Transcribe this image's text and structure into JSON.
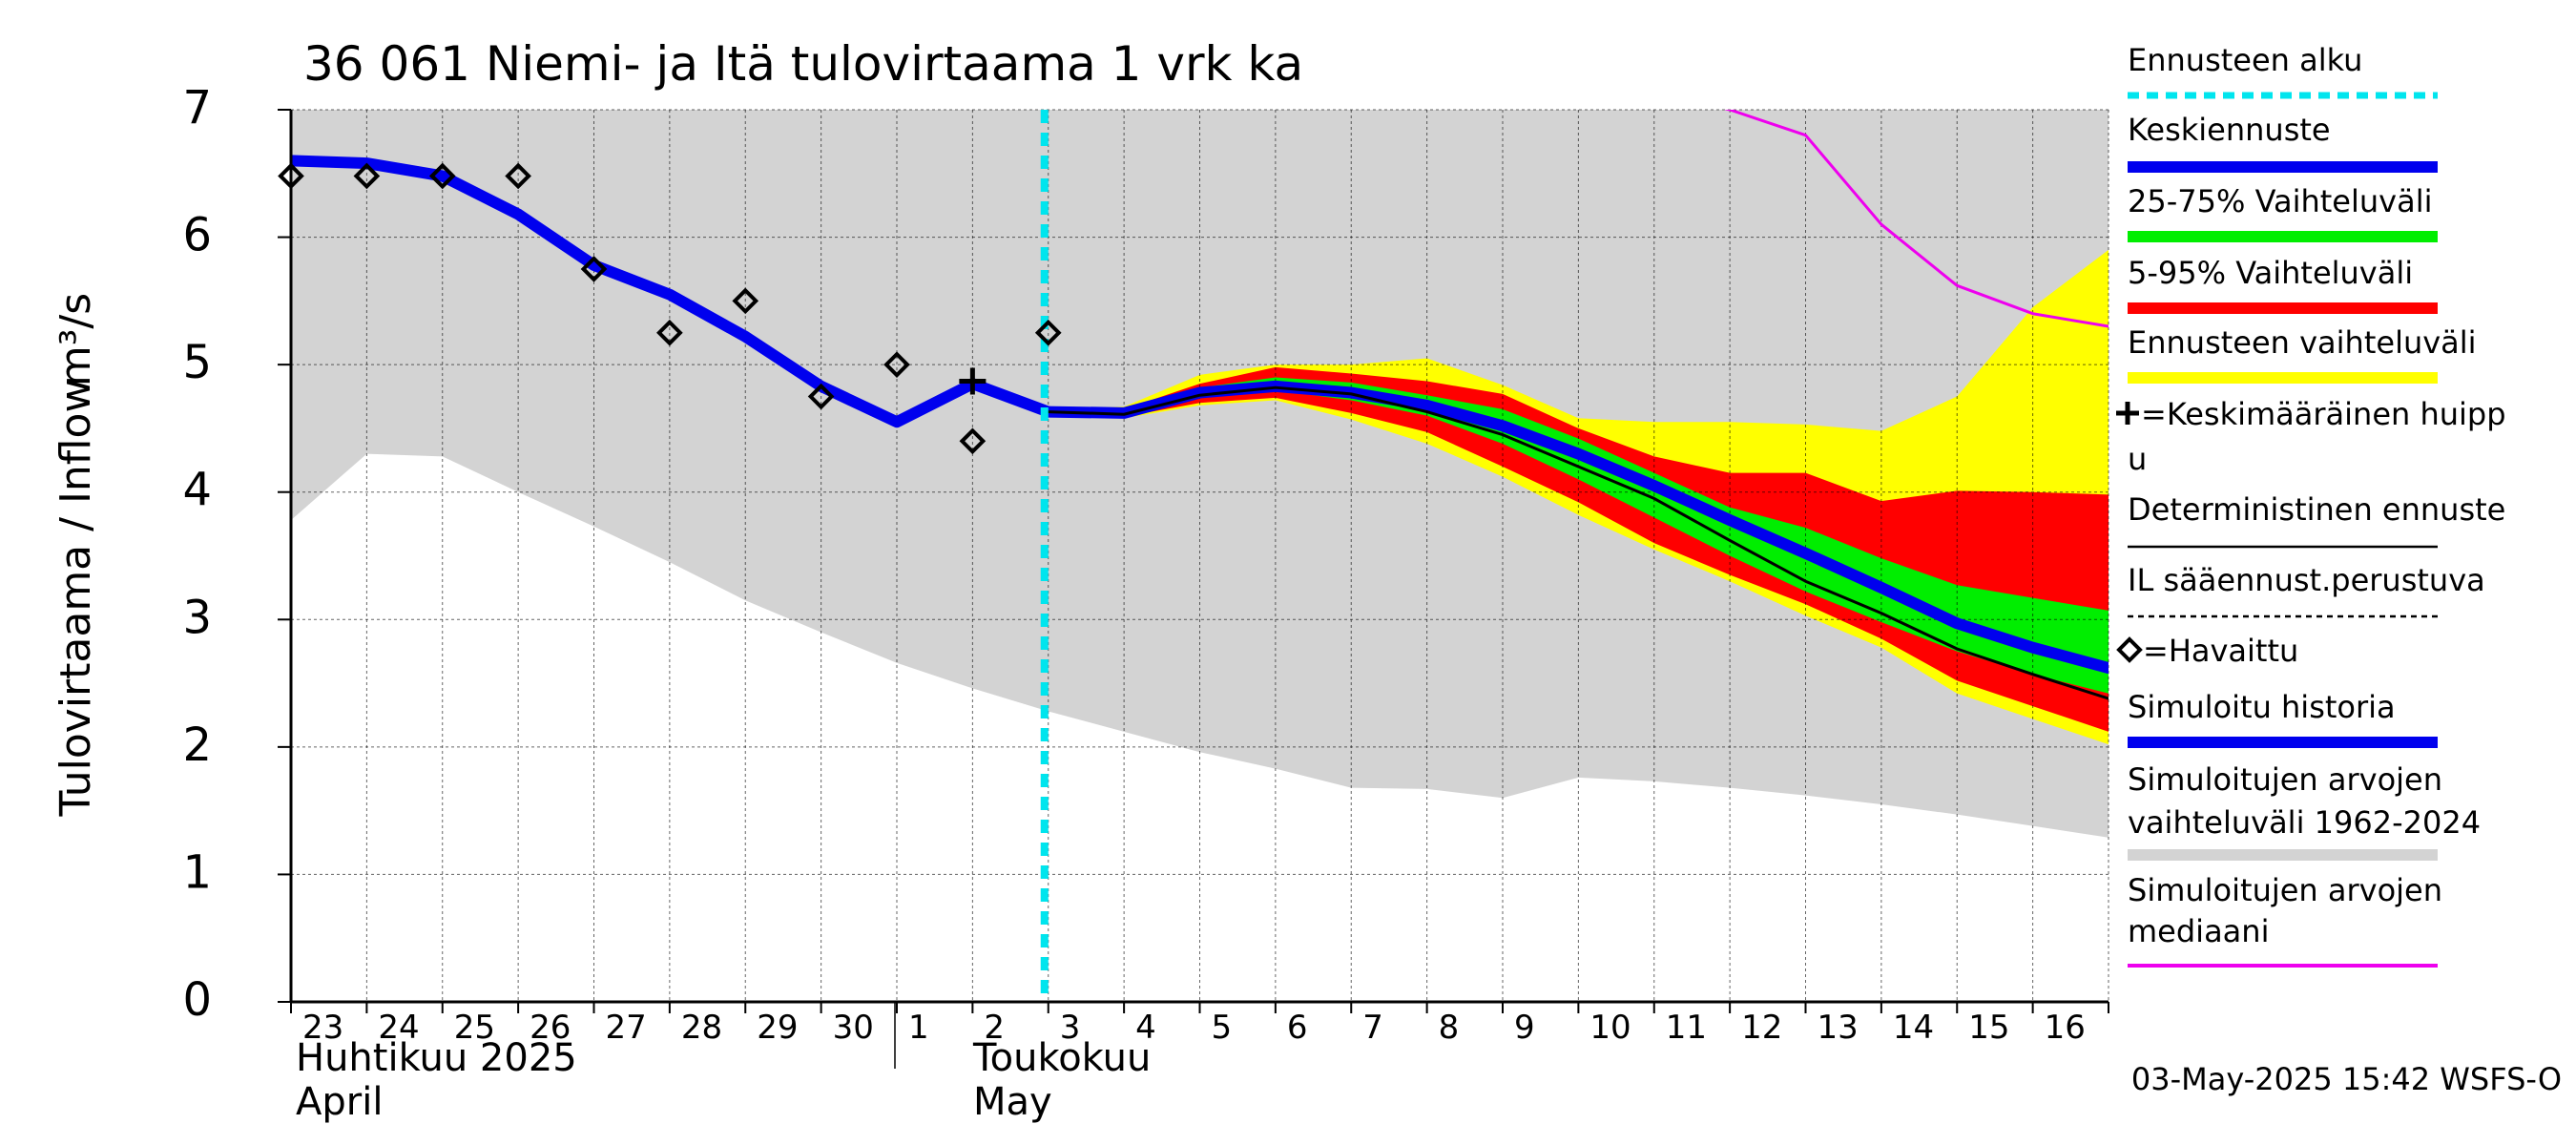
{
  "chart_data": {
    "type": "line",
    "title": "36 061 Niemi- ja Itä tulovirtaama 1 vrk ka",
    "ylabel_fi": "Tulovirtaama / Inflow",
    "ylabel_unit": "m³/s",
    "ylim": [
      0,
      7
    ],
    "yticks": [
      "0",
      "1",
      "2",
      "3",
      "4",
      "5",
      "6",
      "7"
    ],
    "x_dates": [
      "2025-04-23",
      "2025-04-24",
      "2025-04-25",
      "2025-04-26",
      "2025-04-27",
      "2025-04-28",
      "2025-04-29",
      "2025-04-30",
      "2025-05-01",
      "2025-05-02",
      "2025-05-03",
      "2025-05-04",
      "2025-05-05",
      "2025-05-06",
      "2025-05-07",
      "2025-05-08",
      "2025-05-09",
      "2025-05-10",
      "2025-05-11",
      "2025-05-12",
      "2025-05-13",
      "2025-05-14",
      "2025-05-15",
      "2025-05-16",
      "2025-05-17"
    ],
    "xtick_labels": [
      "23",
      "24",
      "25",
      "26",
      "27",
      "28",
      "29",
      "30",
      "1",
      "2",
      "3",
      "4",
      "5",
      "6",
      "7",
      "8",
      "9",
      "10",
      "11",
      "12",
      "13",
      "14",
      "15",
      "16"
    ],
    "month_labels": {
      "april_fi": "Huhtikuu  2025",
      "april_en": "April",
      "may_fi": "Toukokuu",
      "may_en": "May"
    },
    "forecast_start": "2025-05-03",
    "series": [
      {
        "name": "Simuloitujen arvojen vaihteluväli 1962-2024",
        "color": "#d3d3d3",
        "upper": [
          7,
          7,
          7,
          7,
          7,
          7,
          7,
          7,
          7,
          7,
          7,
          7,
          7,
          7,
          7,
          7,
          7,
          7,
          7,
          7,
          7,
          7,
          7,
          7,
          7
        ],
        "lower": [
          3.78,
          4.3,
          4.28,
          4.0,
          3.73,
          3.45,
          3.15,
          2.9,
          2.66,
          2.46,
          2.28,
          2.12,
          1.96,
          1.83,
          1.68,
          1.67,
          1.6,
          1.76,
          1.73,
          1.68,
          1.62,
          1.55,
          1.47,
          1.38,
          1.29
        ]
      },
      {
        "name": "Ennusteen vaihteluväli",
        "color": "#ffff00",
        "x_start_index": 10,
        "upper": [
          4.65,
          4.67,
          4.92,
          5.0,
          5.0,
          5.05,
          4.84,
          4.58,
          4.55,
          4.55,
          4.53,
          4.48,
          4.75,
          5.45,
          5.9
        ],
        "lower": [
          4.6,
          4.58,
          4.68,
          4.72,
          4.57,
          4.38,
          4.12,
          3.82,
          3.55,
          3.3,
          3.03,
          2.78,
          2.42,
          2.22,
          2.02
        ]
      },
      {
        "name": "5-95% Vaihteluväli",
        "color": "#ff0000",
        "x_start_index": 10,
        "upper": [
          4.64,
          4.65,
          4.85,
          4.98,
          4.93,
          4.87,
          4.77,
          4.5,
          4.28,
          4.15,
          4.15,
          3.93,
          4.01,
          4.0,
          3.98
        ],
        "lower": [
          4.61,
          4.59,
          4.7,
          4.74,
          4.62,
          4.47,
          4.2,
          3.92,
          3.6,
          3.35,
          3.12,
          2.85,
          2.52,
          2.32,
          2.12
        ]
      },
      {
        "name": "25-75% Vaihteluväli",
        "color": "#00ee00",
        "x_start_index": 10,
        "upper": [
          4.63,
          4.63,
          4.82,
          4.9,
          4.86,
          4.76,
          4.65,
          4.42,
          4.15,
          3.88,
          3.72,
          3.48,
          3.27,
          3.17,
          3.07
        ],
        "lower": [
          4.62,
          4.6,
          4.75,
          4.8,
          4.72,
          4.6,
          4.38,
          4.1,
          3.8,
          3.5,
          3.22,
          2.98,
          2.75,
          2.57,
          2.42
        ]
      },
      {
        "name": "Simuloitu historia",
        "color": "#0000ee",
        "x_start_index": 0,
        "values": [
          6.6,
          6.58,
          6.48,
          6.18,
          5.78,
          5.55,
          5.22,
          4.83,
          4.55,
          4.85,
          4.63
        ]
      },
      {
        "name": "Keskiennuste",
        "color": "#0000ee",
        "x_start_index": 10,
        "values": [
          4.63,
          4.62,
          4.78,
          4.83,
          4.78,
          4.68,
          4.52,
          4.3,
          4.05,
          3.78,
          3.52,
          3.25,
          2.97,
          2.78,
          2.62
        ]
      },
      {
        "name": "Deterministinen ennuste",
        "color": "#000000",
        "x_start_index": 10,
        "values": [
          4.63,
          4.61,
          4.76,
          4.82,
          4.77,
          4.63,
          4.45,
          4.2,
          3.95,
          3.62,
          3.3,
          3.05,
          2.77,
          2.57,
          2.38
        ]
      },
      {
        "name": "Simuloitujen arvojen mediaani",
        "color": "#ee00ee",
        "x_start_index": 18,
        "values": [
          7.15,
          7.0,
          6.8,
          6.1,
          5.62,
          5.4,
          5.3
        ]
      },
      {
        "name": "Havaittu",
        "type": "scatter",
        "x_start_index": 0,
        "values": [
          6.48,
          6.48,
          6.48,
          6.48,
          5.75,
          5.25,
          5.5,
          4.75,
          5.0,
          4.4,
          5.25
        ]
      }
    ],
    "peak_marker": {
      "date": "2025-05-02",
      "value": 4.87
    },
    "legend": [
      {
        "label": "Ennusteen alku",
        "style": "dashed",
        "color": "#00e5ee"
      },
      {
        "label": "Keskiennuste",
        "style": "line",
        "color": "#0000ee"
      },
      {
        "label": "25-75% Vaihteluväli",
        "style": "line",
        "color": "#00ee00"
      },
      {
        "label": "5-95% Vaihteluväli",
        "style": "line",
        "color": "#ff0000"
      },
      {
        "label": "Ennusteen vaihteluväli",
        "style": "line",
        "color": "#ffff00"
      },
      {
        "label": "=Keskimääräinen huipp",
        "label2": "u",
        "style": "plus-marker",
        "color": "#000000"
      },
      {
        "label": "Deterministinen ennuste",
        "style": "thin-line",
        "color": "#000000"
      },
      {
        "label": "IL sääennust.perustuva",
        "style": "dotted",
        "color": "#000000"
      },
      {
        "label": "=Havaittu",
        "style": "diamond-marker",
        "color": "#000000"
      },
      {
        "label": "Simuloitu historia",
        "style": "line",
        "color": "#0000ee"
      },
      {
        "label": "Simuloitujen arvojen",
        "label2": "vaihteluväli 1962-2024",
        "style": "line",
        "color": "#d3d3d3"
      },
      {
        "label": "Simuloitujen arvojen",
        "label2": "mediaani",
        "style": "line",
        "color": "#ee00ee"
      }
    ],
    "grid": true,
    "legend_placement": "right"
  },
  "footer": "03-May-2025 15:42 WSFS-O"
}
